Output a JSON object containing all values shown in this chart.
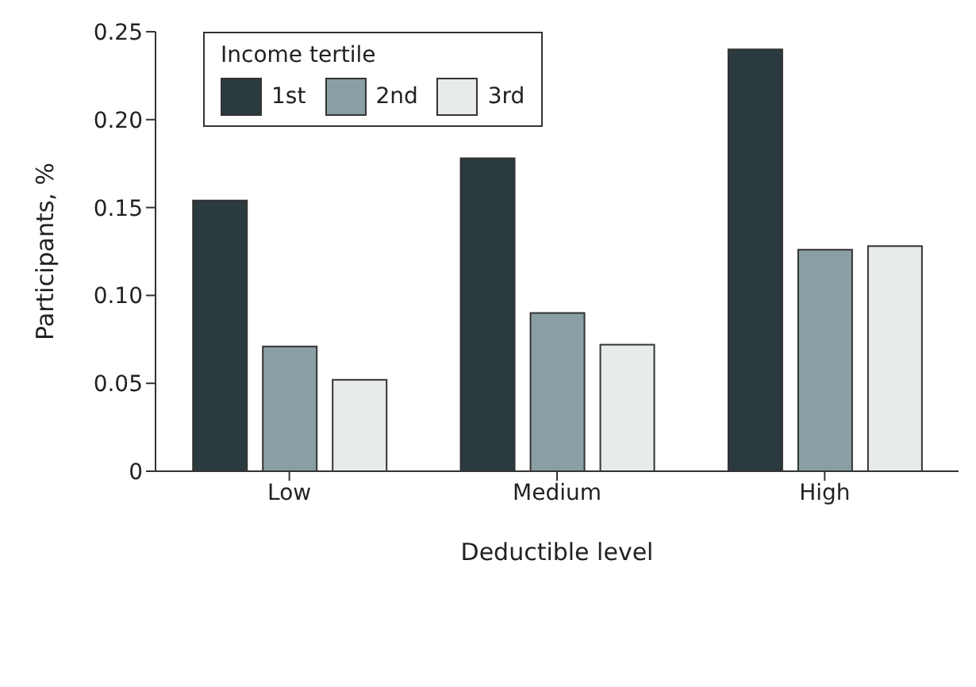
{
  "chart_data": {
    "type": "bar",
    "xlabel": "Deductible level",
    "ylabel": "Participants, %",
    "legend_title": "Income tertile",
    "legend": "top left",
    "grid": false,
    "categories": [
      "Low",
      "Medium",
      "High"
    ],
    "series": [
      {
        "name": "1st",
        "color": "#2b3a3f",
        "values": [
          0.154,
          0.178,
          0.24
        ]
      },
      {
        "name": "2nd",
        "color": "#8a9fa3",
        "values": [
          0.071,
          0.09,
          0.126
        ]
      },
      {
        "name": "3rd",
        "color": "#e8ebeb",
        "values": [
          0.052,
          0.072,
          0.128
        ]
      }
    ],
    "ylim": [
      0,
      0.25
    ],
    "yticks": [
      0,
      0.05,
      {
        "value": 0.1,
        "label": "0.10"
      },
      0.15,
      {
        "value": 0.2,
        "label": "0.20"
      },
      0.25
    ]
  }
}
